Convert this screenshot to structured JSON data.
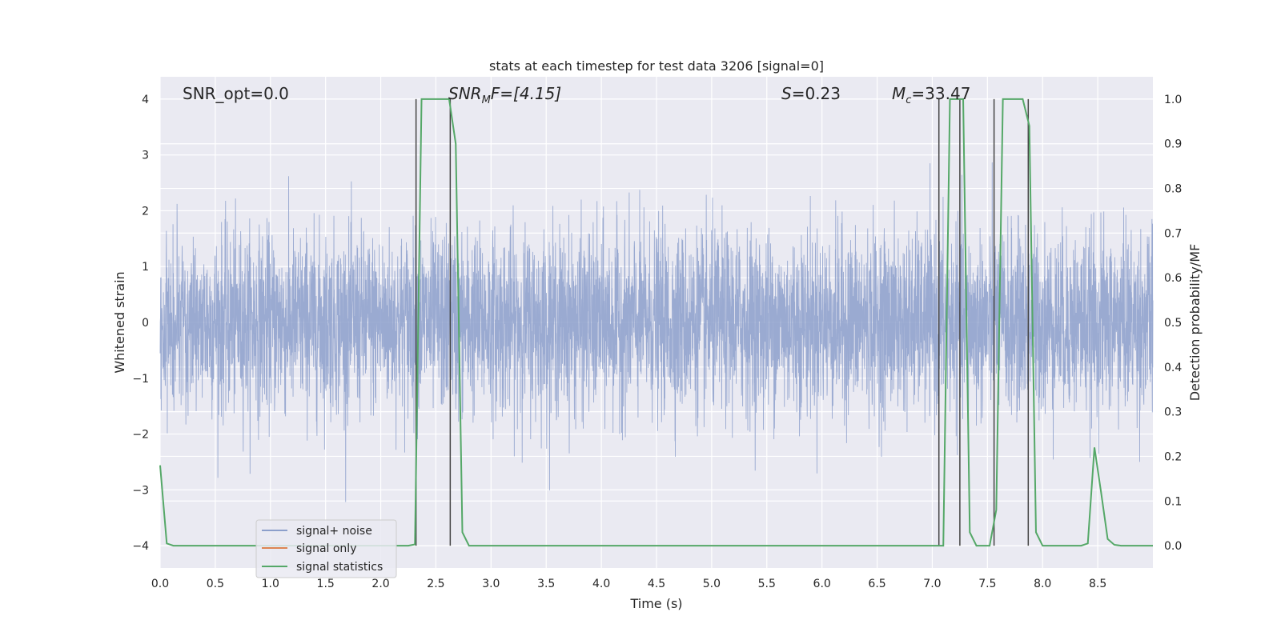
{
  "chart_data": {
    "type": "line",
    "title": "stats at each timestep for test data 3206 [signal=0]",
    "xlabel": "Time (s)",
    "ylabel_left": "Whitened strain",
    "ylabel_right": "Detection probability/MF",
    "xlim": [
      0.0,
      9.0
    ],
    "ylim_left": [
      -4.4,
      4.4
    ],
    "ylim_right": [
      -0.05,
      1.05
    ],
    "xticks": [
      0.0,
      0.5,
      1.0,
      1.5,
      2.0,
      2.5,
      3.0,
      3.5,
      4.0,
      4.5,
      5.0,
      5.5,
      6.0,
      6.5,
      7.0,
      7.5,
      8.0,
      8.5
    ],
    "xtick_labels": [
      "0.0",
      "0.5",
      "1.0",
      "1.5",
      "2.0",
      "2.5",
      "3.0",
      "3.5",
      "4.0",
      "4.5",
      "5.0",
      "5.5",
      "6.0",
      "6.5",
      "7.0",
      "7.5",
      "8.0",
      "8.5"
    ],
    "yticks_left": [
      4,
      3,
      2,
      1,
      0,
      -1,
      -2,
      -3,
      -4
    ],
    "ytick_labels_left": [
      "4",
      "3",
      "2",
      "1",
      "0",
      "−1",
      "−2",
      "−3",
      "−4"
    ],
    "yticks_right": [
      1.0,
      0.9,
      0.8,
      0.7,
      0.6,
      0.5,
      0.4,
      0.3,
      0.2,
      0.1,
      0.0
    ],
    "ytick_labels_right": [
      "1.0",
      "0.9",
      "0.8",
      "0.7",
      "0.6",
      "0.5",
      "0.4",
      "0.3",
      "0.2",
      "0.1",
      "0.0"
    ],
    "grid": true,
    "legend_position": "lower-left",
    "annotations": {
      "snr_opt": "SNR_opt=0.0",
      "snr_mf_main": "SNR",
      "snr_mf_sub": "M",
      "snr_mf_tail": "F=[4.15]",
      "s_main": "S",
      "s_tail": "=0.23",
      "mc_main": "M",
      "mc_sub": "c",
      "mc_tail": "=33.47"
    },
    "series": [
      {
        "name": "signal+ noise",
        "color": "#8c9fcb",
        "axis": "left",
        "noise_std": 0.8,
        "x_range": [
          0.0,
          9.0
        ]
      },
      {
        "name": "signal only",
        "color": "#dd8452",
        "axis": "left",
        "x": [],
        "y": []
      },
      {
        "name": "signal statistics",
        "color": "#55a868",
        "axis": "right",
        "x": [
          0.0,
          0.06,
          0.12,
          0.18,
          2.25,
          2.31,
          2.37,
          2.43,
          2.49,
          2.55,
          2.62,
          2.68,
          2.74,
          2.8,
          7.04,
          7.1,
          7.16,
          7.22,
          7.28,
          7.34,
          7.4,
          7.46,
          7.52,
          7.58,
          7.64,
          7.7,
          7.76,
          7.82,
          7.88,
          7.94,
          8.0,
          8.35,
          8.41,
          8.47,
          8.53,
          8.59,
          8.65,
          8.71,
          9.0
        ],
        "y": [
          0.18,
          0.005,
          0.0,
          0.0,
          0.0,
          0.003,
          1.0,
          1.0,
          1.0,
          1.0,
          1.0,
          0.9,
          0.03,
          0.0,
          0.0,
          0.0,
          1.0,
          1.0,
          1.0,
          0.03,
          0.0,
          0.0,
          0.0,
          0.08,
          1.0,
          1.0,
          1.0,
          1.0,
          0.94,
          0.03,
          0.0,
          0.0,
          0.005,
          0.22,
          0.12,
          0.015,
          0.002,
          0.0,
          0.0
        ]
      }
    ],
    "vertical_markers_x": [
      2.32,
      2.63,
      7.06,
      7.25,
      7.56,
      7.87
    ],
    "vertical_marker_ylim_right": [
      0.0,
      1.0
    ],
    "vertical_marker_color": "#444444"
  }
}
